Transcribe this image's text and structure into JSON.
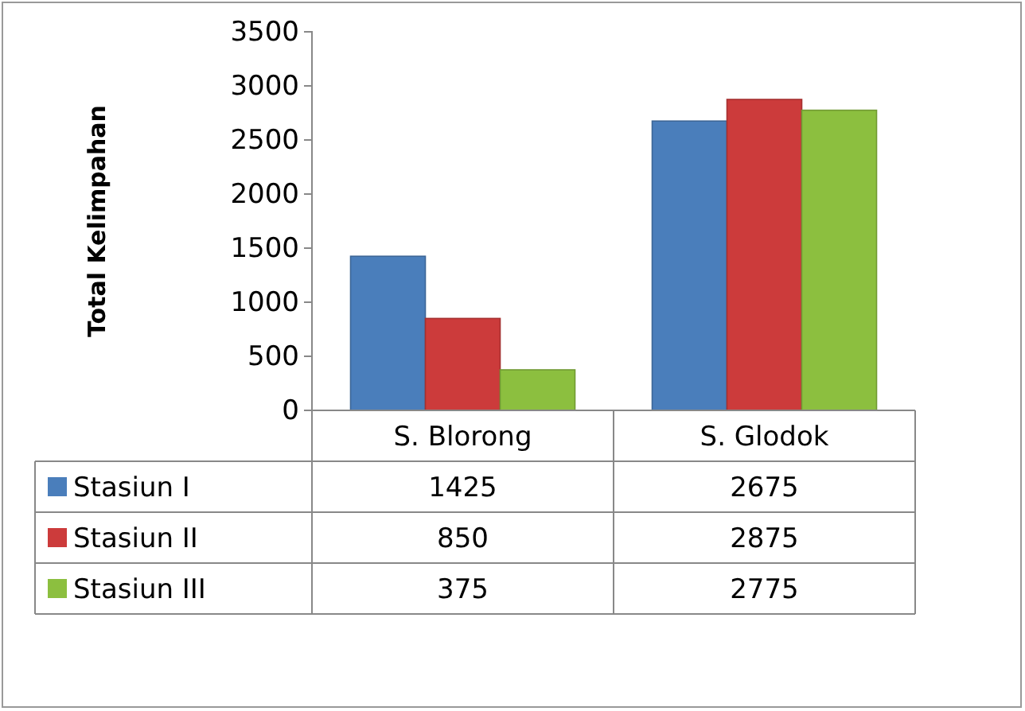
{
  "chart_data": {
    "type": "bar",
    "ylabel": "Total Kelimpahan",
    "categories": [
      "S. Blorong",
      "S. Glodok"
    ],
    "series": [
      {
        "name": "Stasiun I",
        "color": "#4a7ebb",
        "values": [
          1425,
          2675
        ]
      },
      {
        "name": "Stasiun II",
        "color": "#cc3b3b",
        "values": [
          850,
          2875
        ]
      },
      {
        "name": "Stasiun III",
        "color": "#8cbf3f",
        "values": [
          375,
          2775
        ]
      }
    ],
    "ylim": [
      0,
      3500
    ],
    "yticks": [
      0,
      500,
      1000,
      1500,
      2000,
      2500,
      3000,
      3500
    ],
    "data_labels": true,
    "legend": "bottom",
    "grid": false
  }
}
